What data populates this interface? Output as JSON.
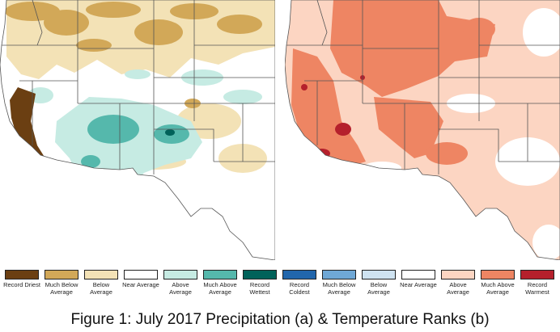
{
  "caption": "Figure 1: July 2017 Precipitation (a) & Temperature Ranks (b)",
  "maps": [
    {
      "id": "precipitation",
      "variable": "Precipitation",
      "panel": "a"
    },
    {
      "id": "temperature",
      "variable": "Temperature",
      "panel": "b"
    }
  ],
  "colors": {
    "record_driest": "#6b3f12",
    "much_below_average_precip": "#d2a858",
    "below_average_precip": "#f3e2b6",
    "near_average": "#ffffff",
    "above_average_precip": "#c6ebe3",
    "much_above_average_precip": "#55b8ac",
    "record_wettest": "#00625a",
    "record_coldest": "#2166ac",
    "much_below_average_temp": "#6fa8d6",
    "below_average_temp": "#cfe3f1",
    "above_average_temp": "#fcd5c2",
    "much_above_average_temp": "#ee8563",
    "record_warmest": "#b5202c",
    "boundary": "#555555"
  },
  "legend": [
    {
      "label": "Record Driest",
      "color": "#6b3f12"
    },
    {
      "label": "Much Below Average",
      "color": "#d2a858"
    },
    {
      "label": "Below Average",
      "color": "#f3e2b6"
    },
    {
      "label": "Near Average",
      "color": "#ffffff"
    },
    {
      "label": "Above Average",
      "color": "#c6ebe3"
    },
    {
      "label": "Much Above Average",
      "color": "#55b8ac"
    },
    {
      "label": "Record Wettest",
      "color": "#00625a"
    },
    {
      "label": "Record Coldest",
      "color": "#2166ac"
    },
    {
      "label": "Much Below Average",
      "color": "#6fa8d6"
    },
    {
      "label": "Below Average",
      "color": "#cfe3f1"
    },
    {
      "label": "Near Average",
      "color": "#ffffff"
    },
    {
      "label": "Above Average",
      "color": "#fcd5c2"
    },
    {
      "label": "Much Above Average",
      "color": "#ee8563"
    },
    {
      "label": "Record Warmest",
      "color": "#b5202c"
    }
  ]
}
